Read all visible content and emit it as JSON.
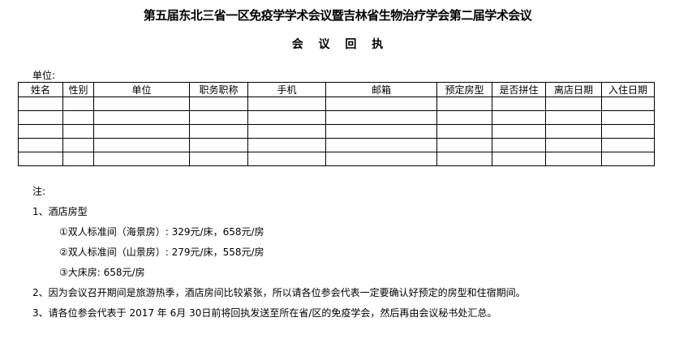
{
  "title": "第五届东北三省一区免疫学学术会议暨吉林省生物治疗学会第二届学术会议",
  "subtitle": "会 议 回 执",
  "unit_label": "单位:",
  "table": {
    "headers": [
      "姓名",
      "性别",
      "单位",
      "职务职称",
      "手机",
      "邮箱",
      "预定房型",
      "是否拼住",
      "离店日期",
      "入住日期"
    ],
    "empty_rows": 5
  },
  "notes": {
    "label": "注:",
    "item1": "1、酒店房型",
    "room1": "①双人标准间（海景房）: 329元/床，658元/房",
    "room2": "②双人标准间（山景房）: 279元/床，558元/房",
    "room3": "③大床房: 658元/房",
    "item2": "2、因为会议召开期间是旅游热季，酒店房间比较紧张，所以请各位参会代表一定要确认好预定的房型和住宿期间。",
    "item3": "3、请各位参会代表于 2017 年 6月 30日前将回执发送至所在省/区的免疫学会，然后再由会议秘书处汇总。"
  }
}
